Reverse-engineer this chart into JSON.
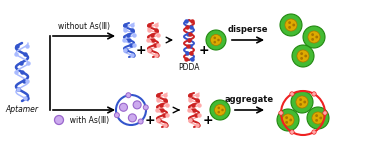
{
  "bg_color": "#ffffff",
  "aptamer_label": "Aptamer",
  "without_label": "without As(Ⅲ)",
  "with_label": "  with As(Ⅲ)",
  "pdda_label": "PDDA",
  "disperse_label": "disperse",
  "aggregate_label": "aggregate",
  "blue_helix_color": "#3355cc",
  "blue_helix_light": "#aabbff",
  "red_helix_color": "#cc2222",
  "red_helix_light": "#ffaaaa",
  "purple_color": "#9966cc",
  "purple_light": "#ccaaee",
  "green_color": "#44bb33",
  "green_dark": "#228811",
  "gold_color": "#ddaa00",
  "gold_dark": "#aa7700",
  "red_circle_color": "#ee2222",
  "text_color": "#111111"
}
